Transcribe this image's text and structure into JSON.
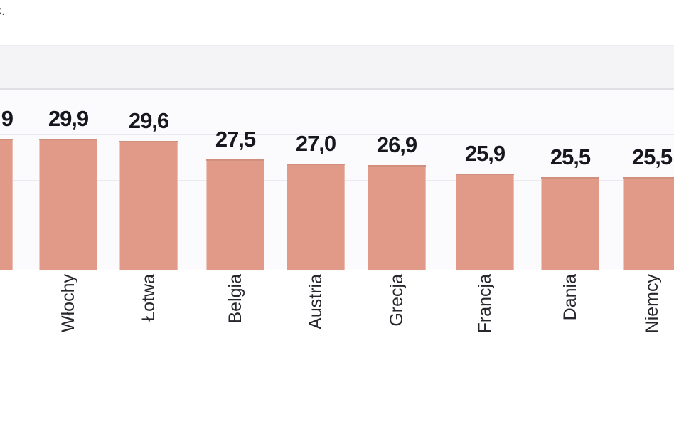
{
  "page": {
    "corner_text": "c.",
    "background": "#ffffff"
  },
  "chart_data": {
    "type": "bar",
    "title": "",
    "title_fragment_visible": "c.",
    "categories": [
      "",
      "Włochy",
      "Łotwa",
      "Belgia",
      "Austria",
      "Grecja",
      "Francja",
      "Dania",
      "Niemcy"
    ],
    "values": [
      29.9,
      29.9,
      29.6,
      27.5,
      27.0,
      26.9,
      25.9,
      25.5,
      25.5
    ],
    "value_labels": [
      "9",
      "29,9",
      "29,6",
      "27,5",
      "27,0",
      "26,9",
      "25,9",
      "25,5",
      "25,5"
    ],
    "decimal_separator": ",",
    "first_bar_clipped_left": true,
    "last_bar_clipped_right": true,
    "xlabel": "",
    "ylabel": "",
    "axis_baseline_value": 15,
    "gridline_values": [
      30,
      25,
      20
    ],
    "grid": true,
    "legend": "none",
    "bar_color": "#e09a87",
    "bar_top_edge_color": "#d18f7d",
    "value_label_color": "#17171f",
    "category_label_color": "#26262c",
    "panel_band_color": "#f4f4f6",
    "plot_background_color": "#fbfbfd",
    "gridline_color": "#e9e9ef"
  }
}
